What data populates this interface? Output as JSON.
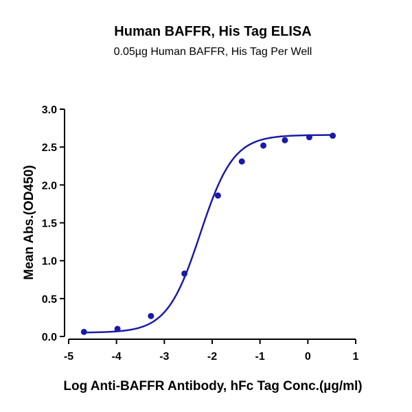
{
  "chart_data": {
    "type": "scatter",
    "title": "Human BAFFR, His Tag ELISA",
    "subtitle": "0.05µg Human BAFFR, His Tag Per Well",
    "xlabel": "Log Anti-BAFFR Antibody, hFc Tag Conc.(µg/ml)",
    "ylabel": "Mean Abs.(OD450)",
    "xlim": [
      -5,
      1
    ],
    "ylim": [
      0,
      3
    ],
    "x_ticks": [
      -5,
      -4,
      -3,
      -2,
      -1,
      0,
      1
    ],
    "x_tick_labels": [
      "-5",
      "-4",
      "-3",
      "-2",
      "-1",
      "0",
      "1"
    ],
    "y_ticks": [
      0,
      0.5,
      1,
      1.5,
      2,
      2.5,
      3
    ],
    "y_tick_labels": [
      "0.0",
      "0.5",
      "1.0",
      "1.5",
      "2.0",
      "2.5",
      "3.0"
    ],
    "grid": false,
    "legend": "none",
    "series": [
      {
        "x": [
          -4.68,
          -3.98,
          -3.28,
          -2.58,
          -1.88,
          -1.38,
          -0.93,
          -0.48,
          0.03,
          0.52
        ],
        "y": [
          0.06,
          0.1,
          0.27,
          0.83,
          1.86,
          2.31,
          2.52,
          2.59,
          2.63,
          2.65
        ],
        "color": "#1a1aa8",
        "fit": "sigmoidal"
      }
    ]
  }
}
